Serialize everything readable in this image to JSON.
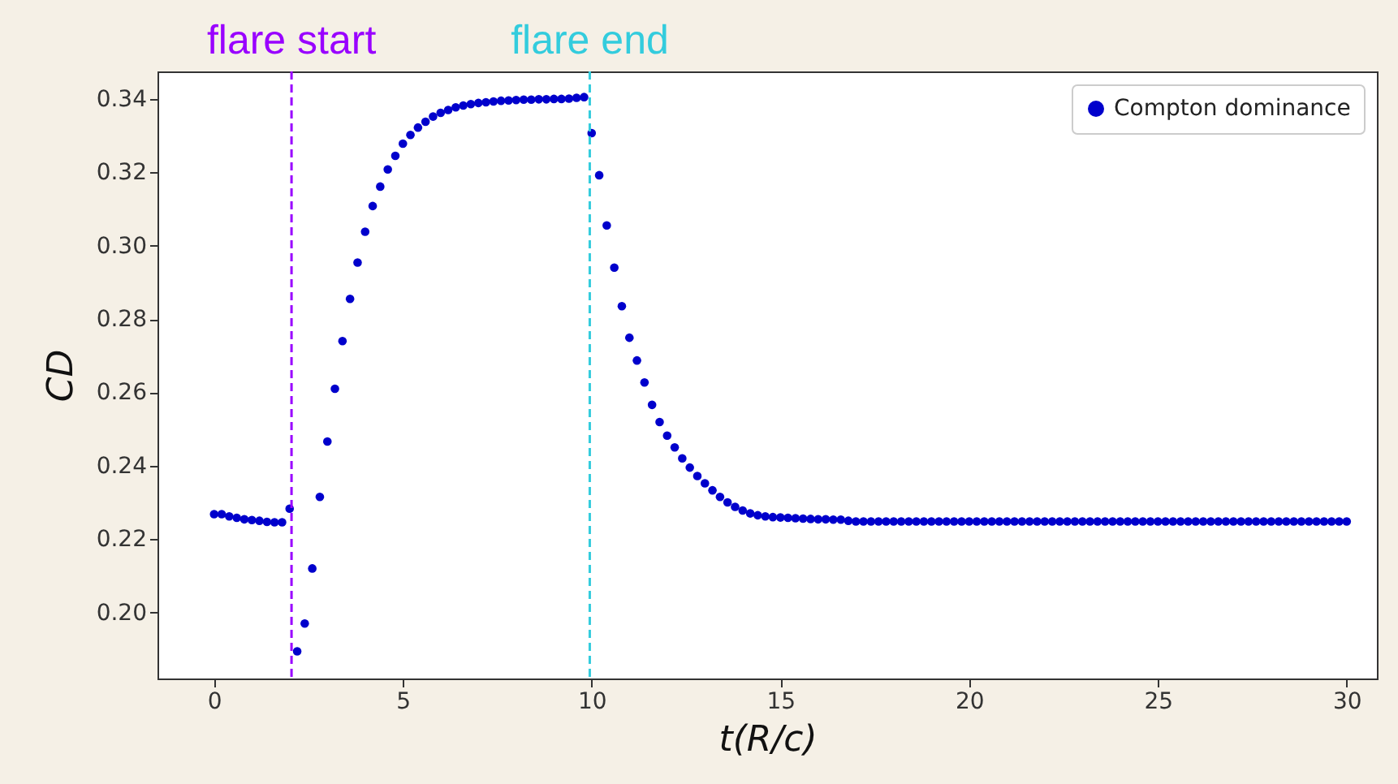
{
  "chart_data": {
    "type": "scatter",
    "xlabel": "t(R/c)",
    "ylabel": "CD",
    "x": [
      0,
      0.2,
      0.4,
      0.6,
      0.8,
      1,
      1.2,
      1.4,
      1.6,
      1.8,
      2,
      2.2,
      2.4,
      2.6,
      2.8,
      3,
      3.2,
      3.4,
      3.6,
      3.8,
      4,
      4.2,
      4.4,
      4.6,
      4.8,
      5,
      5.2,
      5.4,
      5.6,
      5.8,
      6,
      6.2,
      6.4,
      6.6,
      6.8,
      7,
      7.2,
      7.4,
      7.6,
      7.8,
      8,
      8.2,
      8.4,
      8.6,
      8.8,
      9,
      9.2,
      9.4,
      9.6,
      9.8,
      10,
      10.2,
      10.4,
      10.6,
      10.8,
      11,
      11.2,
      11.4,
      11.6,
      11.8,
      12,
      12.2,
      12.4,
      12.6,
      12.8,
      13,
      13.2,
      13.4,
      13.6,
      13.8,
      14,
      14.2,
      14.4,
      14.6,
      14.8,
      15,
      15.2,
      15.4,
      15.6,
      15.8,
      16,
      16.2,
      16.4,
      16.6,
      16.8,
      17,
      17.2,
      17.4,
      17.6,
      17.8,
      18,
      18.2,
      18.4,
      18.6,
      18.8,
      19,
      19.2,
      19.4,
      19.6,
      19.8,
      20,
      20.2,
      20.4,
      20.6,
      20.8,
      21,
      21.2,
      21.4,
      21.6,
      21.8,
      22,
      22.2,
      22.4,
      22.6,
      22.8,
      23,
      23.2,
      23.4,
      23.6,
      23.8,
      24,
      24.2,
      24.4,
      24.6,
      24.8,
      25,
      25.2,
      25.4,
      25.6,
      25.8,
      26,
      26.2,
      26.4,
      26.6,
      26.8,
      27,
      27.2,
      27.4,
      27.6,
      27.8,
      28,
      28.2,
      28.4,
      28.6,
      28.8,
      29,
      29.2,
      29.4,
      29.6,
      29.8,
      30
    ],
    "series": [
      {
        "name": "Compton dominance",
        "color": "#0000cc",
        "values": [
          0.2268,
          0.2268,
          0.2262,
          0.2258,
          0.2254,
          0.2252,
          0.225,
          0.2247,
          0.2246,
          0.2246,
          0.2283,
          0.1894,
          0.197,
          0.212,
          0.2315,
          0.2466,
          0.261,
          0.274,
          0.2855,
          0.2954,
          0.3038,
          0.3108,
          0.3161,
          0.3208,
          0.3245,
          0.3278,
          0.3302,
          0.3322,
          0.3338,
          0.3352,
          0.3362,
          0.337,
          0.3377,
          0.3382,
          0.3386,
          0.3389,
          0.3391,
          0.3393,
          0.3395,
          0.3396,
          0.3397,
          0.3398,
          0.3398,
          0.3399,
          0.3399,
          0.34,
          0.34,
          0.3401,
          0.3403,
          0.3405,
          0.3307,
          0.3192,
          0.3055,
          0.294,
          0.2835,
          0.2749,
          0.2687,
          0.2627,
          0.2566,
          0.2519,
          0.2482,
          0.245,
          0.242,
          0.2395,
          0.2372,
          0.2352,
          0.2333,
          0.2315,
          0.23,
          0.2288,
          0.2278,
          0.227,
          0.2265,
          0.2262,
          0.226,
          0.2259,
          0.2258,
          0.2257,
          0.2256,
          0.2255,
          0.2254,
          0.2254,
          0.2253,
          0.2253,
          0.225,
          0.2248,
          0.2248,
          0.2248,
          0.2248,
          0.2248,
          0.2248,
          0.2248,
          0.2248,
          0.2248,
          0.2248,
          0.2248,
          0.2248,
          0.2248,
          0.2248,
          0.2248,
          0.2248,
          0.2248,
          0.2248,
          0.2248,
          0.2248,
          0.2248,
          0.2248,
          0.2248,
          0.2248,
          0.2248,
          0.2248,
          0.2248,
          0.2248,
          0.2248,
          0.2248,
          0.2248,
          0.2248,
          0.2248,
          0.2248,
          0.2248,
          0.2248,
          0.2248,
          0.2248,
          0.2248,
          0.2248,
          0.2248,
          0.2248,
          0.2248,
          0.2248,
          0.2248,
          0.2248,
          0.2248,
          0.2248,
          0.2248,
          0.2248,
          0.2248,
          0.2248,
          0.2248,
          0.2248,
          0.2248,
          0.2248,
          0.2248,
          0.2248,
          0.2248,
          0.2248,
          0.2248,
          0.2248,
          0.2248,
          0.2248,
          0.2248,
          0.2248
        ]
      }
    ],
    "xlim": [
      -1.5,
      30.8
    ],
    "ylim": [
      0.182,
      0.3475
    ],
    "xticks": [
      0,
      5,
      10,
      15,
      20,
      25,
      30
    ],
    "yticks": [
      {
        "value": 0.2,
        "label": "0.20"
      },
      0.22,
      0.24,
      0.26,
      0.28,
      {
        "value": 0.3,
        "label": "0.30"
      },
      0.32,
      0.34
    ],
    "ref_lines": [
      {
        "axis": "x",
        "value": 2.05,
        "label": "flare start",
        "color": "#9900ff",
        "line_style": "dashed"
      },
      {
        "axis": "x",
        "value": 9.95,
        "label": "flare end",
        "color": "#33ccdd",
        "line_style": "dashed"
      }
    ],
    "marker": "circle",
    "legend": "top right",
    "grid": false
  }
}
